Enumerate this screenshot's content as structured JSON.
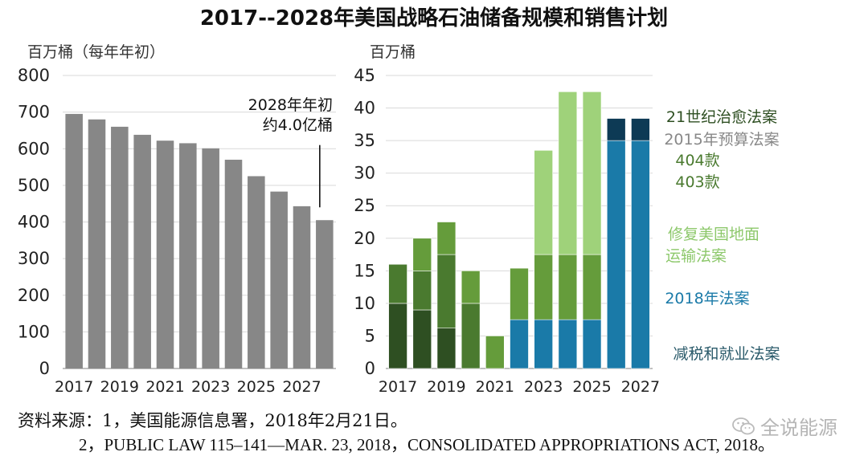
{
  "title": "2017--2028年美国战略石油储备规模和销售计划",
  "chart_data": [
    {
      "type": "bar",
      "unit_label": "百万桶（每年年初）",
      "categories": [
        "2017",
        "2018",
        "2019",
        "2020",
        "2021",
        "2022",
        "2023",
        "2024",
        "2025",
        "2026",
        "2027",
        "2028"
      ],
      "x_tick_labels": [
        "2017",
        "2019",
        "2021",
        "2023",
        "2025",
        "2027"
      ],
      "values": [
        695,
        680,
        660,
        638,
        622,
        615,
        601,
        570,
        525,
        483,
        443,
        405
      ],
      "ylim": [
        0,
        800
      ],
      "y_ticks": [
        0,
        100,
        200,
        300,
        400,
        500,
        600,
        700,
        800
      ],
      "bar_color": "#878787",
      "annotation": {
        "line1": "2028年年初",
        "line2": "约4.0亿桶",
        "category": "2028"
      },
      "grid": true
    },
    {
      "type": "bar",
      "stacked": true,
      "unit_label": "百万桶",
      "categories": [
        "2017",
        "2018",
        "2019",
        "2020",
        "2021",
        "2022",
        "2023",
        "2024",
        "2025",
        "2026",
        "2027"
      ],
      "x_tick_labels": [
        "2017",
        "2019",
        "2021",
        "2023",
        "2025",
        "2027"
      ],
      "ylim": [
        0,
        45
      ],
      "y_ticks": [
        0,
        5,
        10,
        15,
        20,
        25,
        30,
        35,
        40,
        45
      ],
      "grid": true,
      "series": [
        {
          "name": "减税和就业法案",
          "color": "#1a7aa8",
          "values": [
            0,
            0,
            0,
            0,
            0,
            7.5,
            7.5,
            7.5,
            7.5,
            35,
            35
          ]
        },
        {
          "name": "2018年法案",
          "color": "#0d3a55",
          "values": [
            0,
            0,
            0,
            0,
            0,
            0,
            0,
            0,
            0,
            3.4,
            3.4
          ]
        },
        {
          "name": "403款",
          "color": "#2e4f22",
          "values": [
            10,
            9,
            6.2,
            0,
            0,
            0,
            0,
            0,
            0,
            0,
            0
          ]
        },
        {
          "name": "404款",
          "color": "#4a7a2f",
          "values": [
            6,
            6,
            11.3,
            10,
            0,
            0,
            0,
            0,
            0,
            0,
            0
          ]
        },
        {
          "name": "2015年预算法案",
          "color": "#659c3b",
          "values": [
            0,
            5,
            5,
            5,
            5,
            7.9,
            10,
            10,
            10,
            0,
            0
          ]
        },
        {
          "name": "修复美国地面运输法案",
          "color": "#9fd27a",
          "values": [
            0,
            0,
            0,
            0,
            0,
            0,
            16,
            25,
            25,
            0,
            0
          ]
        }
      ],
      "legend": [
        {
          "text": "21世纪治愈法案",
          "color": "#2e4f22"
        },
        {
          "text": "2015年预算法案",
          "color": "#888888"
        },
        {
          "text": "404款",
          "color": "#4a7a2f"
        },
        {
          "text": "403款",
          "color": "#4a7a2f"
        },
        {
          "text": "修复美国地面",
          "color": "#8dc86b"
        },
        {
          "text": "运输法案",
          "color": "#8dc86b"
        },
        {
          "text": "2018年法案",
          "color": "#1a7aa8"
        },
        {
          "text": "减税和就业法案",
          "color": "#2a5a6a"
        }
      ]
    }
  ],
  "source": {
    "line1": "资料来源：1，美国能源信息署，2018年2月21日。",
    "line2": "2，PUBLIC LAW 115–141—MAR. 23, 2018，CONSOLIDATED APPROPRIATIONS ACT, 2018。"
  },
  "watermark": {
    "icon": "wechat-icon",
    "text": "全说能源"
  }
}
